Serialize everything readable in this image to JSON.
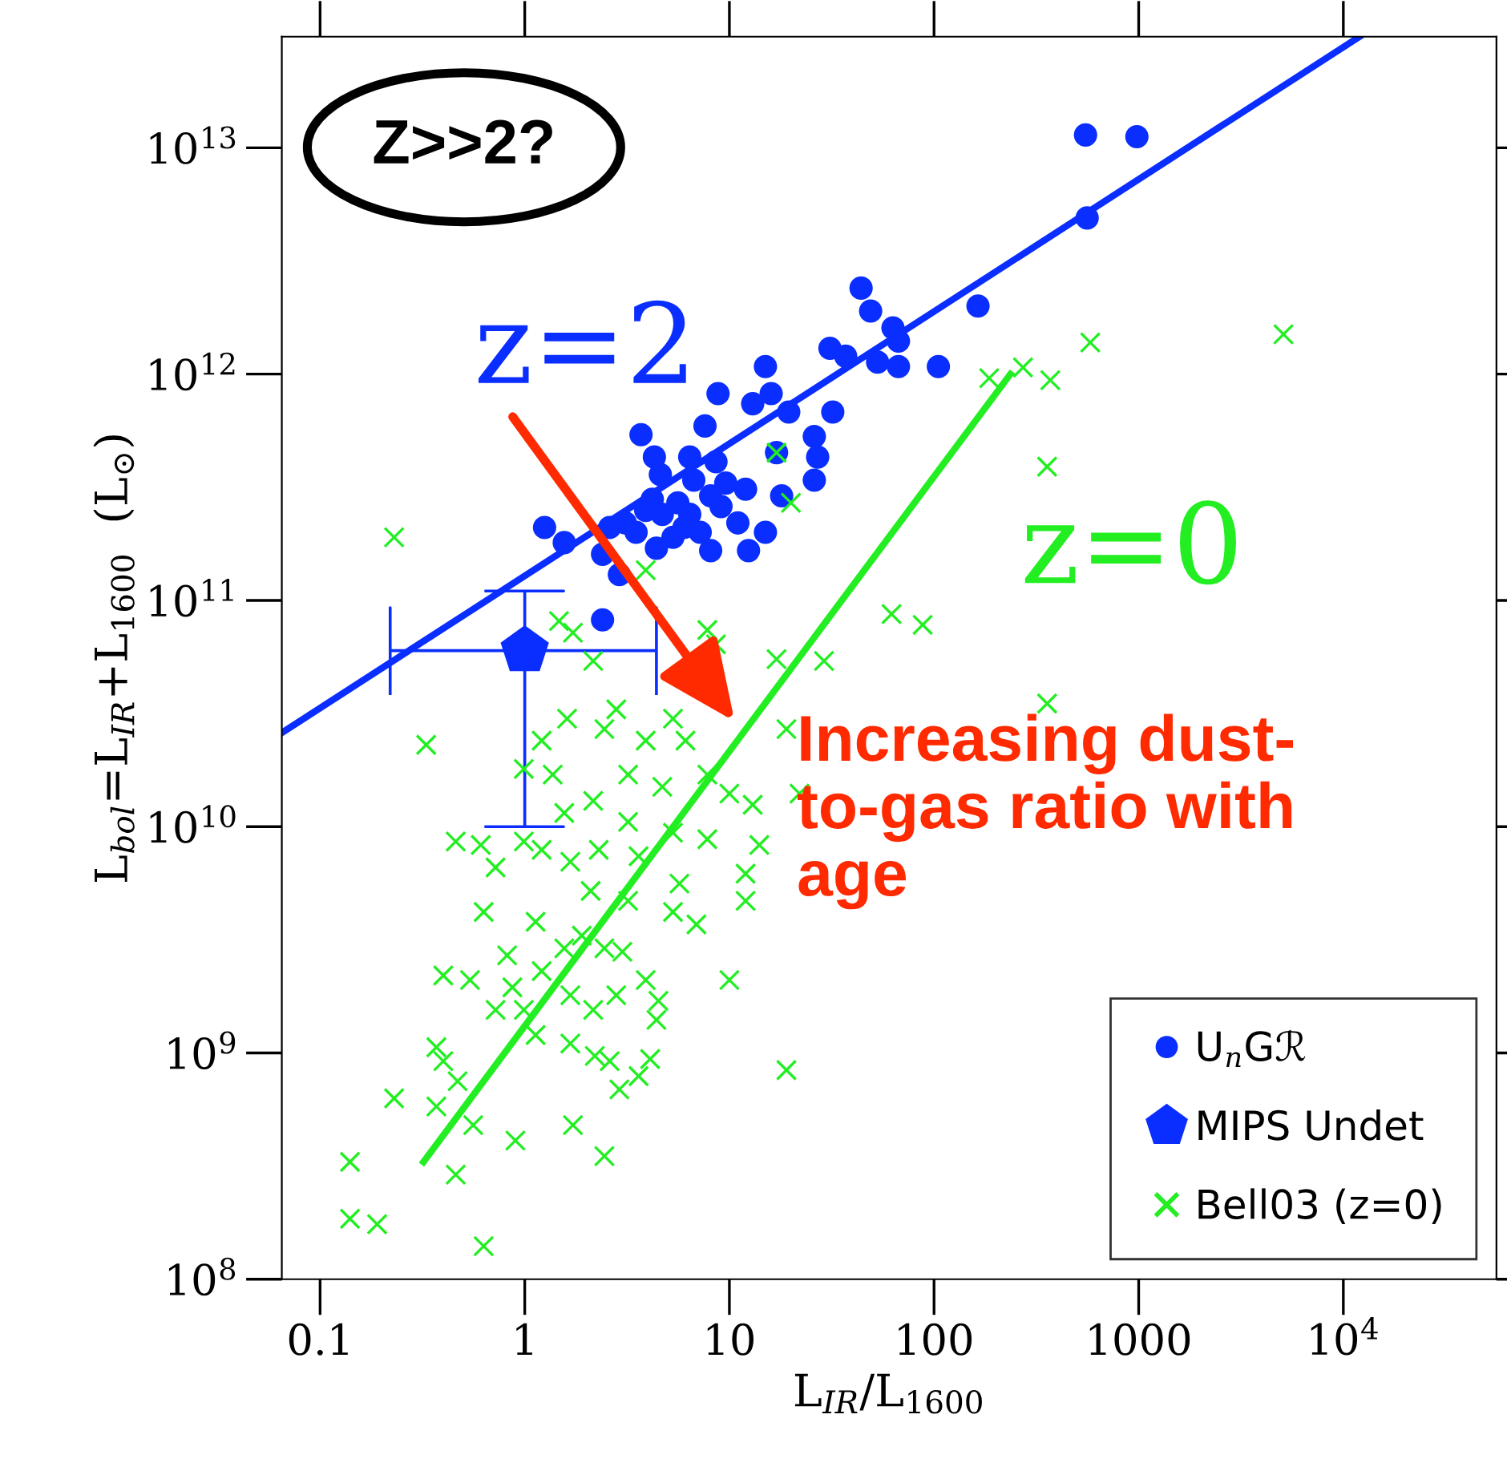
{
  "chart_data": {
    "type": "scatter",
    "xlabel": "L$_{IR}$/L$_{1600}$",
    "ylabel": "L$_{bol}$=L$_{IR}$+L$_{1600}$  (L$_{⊙}$)",
    "log": "xy",
    "xlim": [
      0.065,
      56000
    ],
    "ylim": [
      100000000.0,
      31000000000000.0
    ],
    "xticks": [
      0.1,
      1,
      10,
      100,
      1000,
      {
        "value": 10000,
        "label": "10$^{4}$"
      }
    ],
    "yticks": [
      {
        "value": 100000000.0,
        "label": "10$^{8}$"
      },
      {
        "value": 1000000000.0,
        "label": "10$^{9}$"
      },
      {
        "value": 10000000000.0,
        "label": "10$^{10}$"
      },
      {
        "value": 100000000000.0,
        "label": "10$^{11}$"
      },
      {
        "value": 1000000000000.0,
        "label": "10$^{12}$"
      },
      {
        "value": 10000000000000.0,
        "label": "10$^{13}$"
      }
    ],
    "legend": "bottom right",
    "series": [
      {
        "name": "U$_{n}$Gℛ",
        "type": "scatter",
        "marker": "circle",
        "color": "#0a2eff",
        "x": [
          44,
          49,
          63,
          67,
          31,
          37,
          53,
          67,
          105,
          164,
          15,
          16,
          8.8,
          13,
          19.5,
          32,
          7.6,
          3.7,
          26,
          27,
          26,
          17,
          4.3,
          6.4,
          8.6,
          4.6,
          6.7,
          9.6,
          12,
          18,
          4.2,
          5.6,
          8.1,
          9.1,
          3.9,
          4.7,
          6.4,
          3.1,
          2.6,
          1.25,
          1.56,
          6.0,
          7.2,
          11,
          15,
          12.4,
          8.1,
          5.3,
          3.5,
          2.4,
          2.9,
          4.4,
          2.4,
          550,
          980,
          560
        ],
        "values": [
          2400000000000.0,
          1900000000000.0,
          1600000000000.0,
          1400000000000.0,
          1300000000000.0,
          1200000000000.0,
          1130000000000.0,
          1080000000000.0,
          1080000000000.0,
          2000000000000.0,
          1080000000000.0,
          820000000000.0,
          820000000000.0,
          740000000000.0,
          680000000000.0,
          680000000000.0,
          590000000000.0,
          540000000000.0,
          530000000000.0,
          430000000000.0,
          340000000000.0,
          450000000000.0,
          430000000000.0,
          430000000000.0,
          410000000000.0,
          360000000000.0,
          340000000000.0,
          330000000000.0,
          310000000000.0,
          290000000000.0,
          280000000000.0,
          270000000000.0,
          290000000000.0,
          260000000000.0,
          250000000000.0,
          240000000000.0,
          240000000000.0,
          220000000000.0,
          210000000000.0,
          210000000000.0,
          180000000000.0,
          210000000000.0,
          200000000000.0,
          220000000000.0,
          200000000000.0,
          166000000000.0,
          166000000000.0,
          190000000000.0,
          200000000000.0,
          160000000000.0,
          130000000000.0,
          170000000000.0,
          82000000000.0,
          11400000000000.0,
          11200000000000.0,
          4900000000000.0
        ]
      },
      {
        "name": "MIPS Undet",
        "type": "scatter",
        "color": "#0a2eff",
        "x": [
          1.0
        ],
        "values": [
          60000000000.0
        ],
        "errors": [
          [
            10000000000.0,
            110000000000.0
          ]
        ],
        "xerrors": [
          [
            0.22,
            4.4
          ]
        ]
      },
      {
        "name": "Bell03 (z=0)",
        "type": "scatter",
        "marker": "cross",
        "color": "#22ee22",
        "x": [
          0.23,
          0.33,
          1.47,
          1.72,
          2.16,
          7.8,
          8.6,
          17,
          29,
          19,
          62,
          88,
          22,
          1.21,
          1.61,
          0.99,
          1.37,
          1.56,
          2.45,
          2.8,
          3.9,
          5.3,
          6.1,
          3.2,
          2.16,
          4.7,
          7.8,
          10,
          13,
          14,
          12,
          12,
          7.8,
          5.3,
          3.2,
          2.3,
          1.67,
          1.21,
          0.99,
          0.46,
          0.61,
          0.72,
          0.63,
          1.13,
          2.1,
          3.2,
          5.3,
          6.9,
          5.7,
          3.6,
          1.9,
          2.45,
          3.0,
          1.56,
          0.82,
          0.4,
          0.54,
          0.87,
          1.21,
          0.99,
          1.67,
          2.16,
          2.8,
          3.9,
          4.5,
          4.4,
          0.72,
          1.13,
          1.67,
          2.2,
          2.6,
          4.1,
          3.6,
          2.9,
          0.37,
          0.4,
          0.47,
          0.37,
          0.23,
          0.56,
          0.9,
          1.72,
          2.45,
          0.46,
          0.14,
          0.14,
          0.19,
          0.63,
          10,
          19,
          3.9,
          17,
          20,
          186,
          272,
          370,
          580,
          5100,
          357,
          357
        ],
        "values": [
          190000000000.0,
          23000000000.0,
          81000000000.0,
          72000000000.0,
          54000000000.0,
          74000000000.0,
          64000000000.0,
          55000000000.0,
          54000000000.0,
          27000000000.0,
          87000000000.0,
          78000000000.0,
          14000000000.0,
          24000000000.0,
          30000000000.0,
          18000000000.0,
          17000000000.0,
          11500000000.0,
          27000000000.0,
          33000000000.0,
          24000000000.0,
          30000000000.0,
          24000000000.0,
          17000000000.0,
          13000000000.0,
          15000000000.0,
          17000000000.0,
          14000000000.0,
          12500000000.0,
          8300000000.0,
          6200000000.0,
          4700000000.0,
          8800000000.0,
          9400000000.0,
          10500000000.0,
          7900000000.0,
          7000000000.0,
          7900000000.0,
          8600000000.0,
          8600000000.0,
          8300000000.0,
          6600000000.0,
          4200000000.0,
          3800000000.0,
          5200000000.0,
          4700000000.0,
          4200000000.0,
          3700000000.0,
          5600000000.0,
          7400000000.0,
          3300000000.0,
          2900000000.0,
          2800000000.0,
          2900000000.0,
          2700000000.0,
          2200000000.0,
          2100000000.0,
          1950000000.0,
          2300000000.0,
          1550000000.0,
          1800000000.0,
          1550000000.0,
          1800000000.0,
          2100000000.0,
          1700000000.0,
          1400000000.0,
          1550000000.0,
          1200000000.0,
          1100000000.0,
          970000000.0,
          920000000.0,
          940000000.0,
          790000000.0,
          690000000.0,
          1060000000.0,
          920000000.0,
          750000000.0,
          580000000.0,
          630000000.0,
          480000000.0,
          410000000.0,
          480000000.0,
          350000000.0,
          290000000.0,
          330000000.0,
          185000000.0,
          175000000.0,
          140000000.0,
          2100000000.0,
          840000000.0,
          136000000000.0,
          450000000000.0,
          270000000000.0,
          960000000000.0,
          1070000000000.0,
          940000000000.0,
          1380000000000.0,
          1500000000000.0,
          390000000000.0,
          35000000000.0
        ]
      },
      {
        "type": "line",
        "color": "#0a2eff",
        "x": [
          0.065,
          12000
        ],
        "values": [
          26000000000.0,
          31000000000000.0
        ]
      },
      {
        "type": "line",
        "color": "#22ee22",
        "x": [
          0.32,
          236
        ],
        "values": [
          330000000.0,
          1000000000000.0
        ]
      }
    ],
    "annotations": [
      "Z>>2?",
      "z=2",
      "z=0",
      "Increasing dust-\nto-gas ratio with\nage"
    ]
  }
}
